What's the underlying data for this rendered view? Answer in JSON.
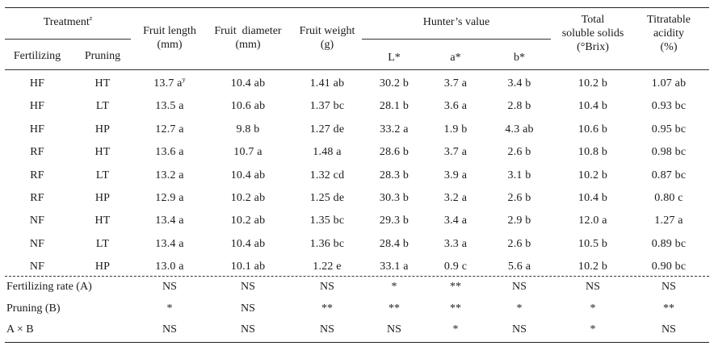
{
  "header": {
    "treatment": "Treatment",
    "treatment_sup": "z",
    "fertilizing": "Fertilizing",
    "pruning": "Pruning",
    "fruit_length": [
      "Fruit length",
      "(mm)"
    ],
    "fruit_diameter": [
      "Fruit  diameter",
      "(mm)"
    ],
    "fruit_weight": [
      "Fruit weight",
      "(g)"
    ],
    "hunter": "Hunter’s value",
    "L": "L*",
    "a": "a*",
    "b": "b*",
    "tss": [
      "Total",
      "soluble solids",
      "(°Brix)"
    ],
    "acidity": [
      "Titratable",
      "acidity",
      "(%)"
    ]
  },
  "rows": [
    {
      "fert": "HF",
      "prune": "HT",
      "length": "13.7 a",
      "length_sup": "y",
      "diameter": "10.4 ab",
      "weight": "1.41 ab",
      "L": "30.2 b",
      "a": "3.7 a",
      "b": "3.4 b",
      "tss": "10.2 b",
      "acid": "1.07 ab"
    },
    {
      "fert": "HF",
      "prune": "LT",
      "length": "13.5 a",
      "length_sup": "",
      "diameter": "10.6 ab",
      "weight": "1.37 bc",
      "L": "28.1 b",
      "a": "3.6 a",
      "b": "2.8 b",
      "tss": "10.4 b",
      "acid": "0.93 bc"
    },
    {
      "fert": "HF",
      "prune": "HP",
      "length": "12.7 a",
      "length_sup": "",
      "diameter": "9.8 b",
      "weight": "1.27 de",
      "L": "33.2 a",
      "a": "1.9 b",
      "b": "4.3 ab",
      "tss": "10.6 b",
      "acid": "0.95 bc"
    },
    {
      "fert": "RF",
      "prune": "HT",
      "length": "13.6 a",
      "length_sup": "",
      "diameter": "10.7 a",
      "weight": "1.48 a",
      "L": "28.6 b",
      "a": "3.7 a",
      "b": "2.6 b",
      "tss": "10.8 b",
      "acid": "0.98 bc"
    },
    {
      "fert": "RF",
      "prune": "LT",
      "length": "13.2 a",
      "length_sup": "",
      "diameter": "10.4 ab",
      "weight": "1.32 cd",
      "L": "28.3 b",
      "a": "3.9 a",
      "b": "3.1 b",
      "tss": "10.2 b",
      "acid": "0.87 bc"
    },
    {
      "fert": "RF",
      "prune": "HP",
      "length": "12.9 a",
      "length_sup": "",
      "diameter": "10.2 ab",
      "weight": "1.25 de",
      "L": "30.3 b",
      "a": "3.2 a",
      "b": "2.6 b",
      "tss": "10.4 b",
      "acid": "0.80 c"
    },
    {
      "fert": "NF",
      "prune": "HT",
      "length": "13.4 a",
      "length_sup": "",
      "diameter": "10.2 ab",
      "weight": "1.35 bc",
      "L": "29.3 b",
      "a": "3.4 a",
      "b": "2.9 b",
      "tss": "12.0 a",
      "acid": "1.27 a"
    },
    {
      "fert": "NF",
      "prune": "LT",
      "length": "13.4 a",
      "length_sup": "",
      "diameter": "10.4 ab",
      "weight": "1.36 bc",
      "L": "28.4 b",
      "a": "3.3 a",
      "b": "2.6 b",
      "tss": "10.5 b",
      "acid": "0.89 bc"
    },
    {
      "fert": "NF",
      "prune": "HP",
      "length": "13.0 a",
      "length_sup": "",
      "diameter": "10.1 ab",
      "weight": "1.22 e",
      "L": "33.1 a",
      "a": "0.9 c",
      "b": "5.6 a",
      "tss": "10.2 b",
      "acid": "0.90 bc"
    }
  ],
  "stats": [
    {
      "label": "Fertilizing rate (A)",
      "length": "NS",
      "diameter": "NS",
      "weight": "NS",
      "L": "*",
      "a": "**",
      "b": "NS",
      "tss": "NS",
      "acid": "NS"
    },
    {
      "label": "Pruning (B)",
      "length": "*",
      "diameter": "NS",
      "weight": "**",
      "L": "**",
      "a": "**",
      "b": "*",
      "tss": "*",
      "acid": "**"
    },
    {
      "label": "A × B",
      "length": "NS",
      "diameter": "NS",
      "weight": "NS",
      "L": "NS",
      "a": "*",
      "b": "NS",
      "tss": "*",
      "acid": "NS"
    }
  ]
}
